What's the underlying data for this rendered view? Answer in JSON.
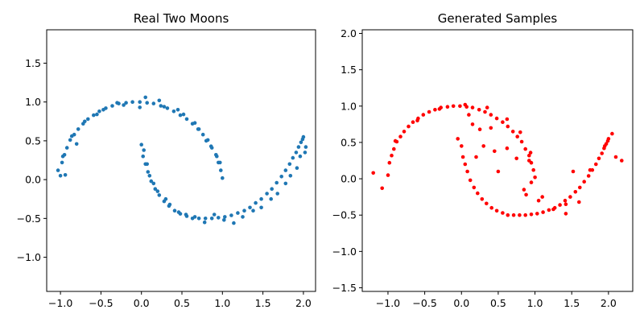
{
  "chart_data": [
    {
      "type": "scatter",
      "title": "Real Two Moons",
      "xlabel": "",
      "ylabel": "",
      "xlim": [
        -1.17,
        2.15
      ],
      "ylim": [
        -1.44,
        1.93
      ],
      "xticks": [
        -1.0,
        -0.5,
        0.0,
        0.5,
        1.0,
        1.5,
        2.0
      ],
      "xtick_labels": [
        "−1.0",
        "−0.5",
        "0.0",
        "0.5",
        "1.0",
        "1.5",
        "2.0"
      ],
      "yticks": [
        -1.0,
        -0.5,
        0.0,
        0.5,
        1.0,
        1.5
      ],
      "ytick_labels": [
        "−1.0",
        "−0.5",
        "0.0",
        "0.5",
        "1.0",
        "1.5"
      ],
      "grid": false,
      "color": "#1f77b4",
      "series": [
        {
          "x": [
            -1.0,
            -0.98,
            -0.95,
            -0.92,
            -0.88,
            -0.83,
            -0.78,
            -0.72,
            -0.66,
            -0.59,
            -0.52,
            -0.44,
            -0.36,
            -0.28,
            -0.19,
            -0.11,
            -0.02,
            0.07,
            0.15,
            0.24,
            0.32,
            0.4,
            0.48,
            0.56,
            0.63,
            0.7,
            0.76,
            0.82,
            0.87,
            0.92,
            0.95,
            0.98,
            1.0,
            -1.03,
            -0.97,
            -0.86,
            -0.7,
            -0.47,
            -0.22,
            0.05,
            0.28,
            0.52,
            0.71,
            0.86,
            0.97,
            -0.94,
            -0.8,
            -0.55,
            -0.3,
            -0.02,
            0.22,
            0.45,
            0.66,
            0.8,
            0.93,
            0.0,
            0.02,
            0.05,
            0.08,
            0.12,
            0.17,
            0.22,
            0.28,
            0.34,
            0.41,
            0.48,
            0.56,
            0.63,
            0.71,
            0.79,
            0.87,
            0.95,
            1.03,
            1.11,
            1.19,
            1.27,
            1.34,
            1.41,
            1.48,
            1.55,
            1.61,
            1.67,
            1.73,
            1.78,
            1.83,
            1.87,
            1.91,
            1.94,
            1.97,
            1.99,
            2.0,
            0.03,
            0.1,
            0.2,
            0.35,
            0.55,
            0.78,
            1.02,
            1.25,
            1.48,
            1.68,
            1.84,
            1.96,
            2.03,
            0.07,
            0.15,
            0.3,
            0.46,
            0.66,
            0.9,
            1.14,
            1.38,
            1.6,
            1.78,
            1.92,
            2.02
          ],
          "y": [
            0.05,
            0.22,
            0.32,
            0.41,
            0.51,
            0.58,
            0.65,
            0.72,
            0.78,
            0.83,
            0.88,
            0.92,
            0.95,
            0.98,
            0.99,
            1.0,
            1.0,
            0.99,
            0.98,
            0.95,
            0.92,
            0.88,
            0.83,
            0.78,
            0.72,
            0.65,
            0.58,
            0.51,
            0.41,
            0.32,
            0.22,
            0.12,
            0.02,
            0.12,
            0.3,
            0.56,
            0.75,
            0.9,
            0.96,
            1.06,
            0.94,
            0.84,
            0.65,
            0.43,
            0.22,
            0.06,
            0.46,
            0.84,
            0.99,
            0.93,
            1.02,
            0.9,
            0.73,
            0.5,
            0.3,
            0.45,
            0.3,
            0.2,
            0.1,
            -0.02,
            -0.12,
            -0.2,
            -0.28,
            -0.34,
            -0.4,
            -0.44,
            -0.47,
            -0.5,
            -0.5,
            -0.5,
            -0.5,
            -0.49,
            -0.48,
            -0.46,
            -0.43,
            -0.4,
            -0.36,
            -0.3,
            -0.25,
            -0.18,
            -0.12,
            -0.04,
            0.04,
            0.12,
            0.2,
            0.28,
            0.35,
            0.42,
            0.48,
            0.52,
            0.55,
            0.38,
            0.05,
            -0.15,
            -0.32,
            -0.45,
            -0.55,
            -0.52,
            -0.48,
            -0.36,
            -0.18,
            0.05,
            0.3,
            0.42,
            0.2,
            -0.05,
            -0.25,
            -0.42,
            -0.48,
            -0.45,
            -0.56,
            -0.4,
            -0.25,
            -0.05,
            0.15,
            0.35
          ]
        }
      ]
    },
    {
      "type": "scatter",
      "title": "Generated Samples",
      "xlabel": "",
      "ylabel": "",
      "xlim": [
        -1.35,
        2.33
      ],
      "ylim": [
        -1.55,
        2.05
      ],
      "xticks": [
        -1.0,
        -0.5,
        0.0,
        0.5,
        1.0,
        1.5,
        2.0
      ],
      "xtick_labels": [
        "−1.0",
        "−0.5",
        "0.0",
        "0.5",
        "1.0",
        "1.5",
        "2.0"
      ],
      "yticks": [
        -1.5,
        -1.0,
        -0.5,
        0.0,
        0.5,
        1.0,
        1.5,
        2.0
      ],
      "ytick_labels": [
        "−1.5",
        "−1.0",
        "−0.5",
        "0.0",
        "0.5",
        "1.0",
        "1.5",
        "2.0"
      ],
      "grid": false,
      "color": "#ff0000",
      "series": [
        {
          "x": [
            -1.0,
            -0.98,
            -0.95,
            -0.92,
            -0.88,
            -0.83,
            -0.78,
            -0.72,
            -0.66,
            -0.59,
            -0.52,
            -0.44,
            -0.36,
            -0.28,
            -0.19,
            -0.11,
            -0.02,
            0.07,
            0.15,
            0.24,
            0.32,
            0.4,
            0.48,
            0.56,
            0.63,
            0.7,
            0.76,
            0.82,
            0.87,
            0.92,
            0.95,
            0.98,
            1.0,
            -1.2,
            -1.08,
            -0.9,
            -0.6,
            -0.3,
            0.05,
            0.35,
            0.62,
            0.8,
            0.94,
            0.0,
            0.02,
            0.05,
            0.08,
            0.12,
            0.17,
            0.22,
            0.28,
            0.34,
            0.41,
            0.48,
            0.56,
            0.63,
            0.71,
            0.79,
            0.87,
            0.95,
            1.03,
            1.11,
            1.19,
            1.27,
            1.34,
            1.41,
            1.48,
            1.55,
            1.61,
            1.67,
            1.73,
            1.78,
            1.83,
            1.87,
            1.91,
            1.94,
            1.97,
            1.99,
            2.0,
            2.05,
            2.18,
            0.3,
            0.45,
            0.62,
            0.85,
            1.05,
            1.25,
            1.42,
            0.75,
            0.92,
            0.88,
            1.1,
            1.42,
            1.6,
            1.52,
            1.75,
            0.2,
            0.5,
            0.15,
            0.1,
            0.25,
            -0.05,
            0.4,
            0.95,
            2.1,
            1.95
          ],
          "y": [
            0.05,
            0.22,
            0.32,
            0.41,
            0.51,
            0.58,
            0.65,
            0.72,
            0.78,
            0.83,
            0.88,
            0.92,
            0.95,
            0.98,
            0.99,
            1.0,
            1.0,
            0.99,
            0.98,
            0.95,
            0.92,
            0.88,
            0.83,
            0.78,
            0.72,
            0.65,
            0.58,
            0.51,
            0.41,
            0.32,
            0.22,
            0.12,
            0.02,
            0.08,
            -0.13,
            0.52,
            0.8,
            0.96,
            1.02,
            0.98,
            0.82,
            0.64,
            0.36,
            0.45,
            0.3,
            0.2,
            0.1,
            -0.02,
            -0.12,
            -0.2,
            -0.28,
            -0.34,
            -0.4,
            -0.44,
            -0.47,
            -0.5,
            -0.5,
            -0.5,
            -0.5,
            -0.49,
            -0.48,
            -0.46,
            -0.43,
            -0.4,
            -0.36,
            -0.3,
            -0.25,
            -0.18,
            -0.12,
            -0.04,
            0.04,
            0.12,
            0.2,
            0.28,
            0.35,
            0.42,
            0.48,
            0.52,
            0.55,
            0.62,
            0.25,
            0.45,
            0.38,
            0.42,
            -0.15,
            -0.3,
            -0.42,
            -0.48,
            0.28,
            0.25,
            -0.22,
            -0.25,
            -0.35,
            -0.32,
            0.1,
            0.12,
            0.3,
            0.1,
            0.75,
            0.88,
            0.68,
            0.55,
            0.7,
            -0.05,
            0.3,
            0.45
          ]
        }
      ]
    }
  ]
}
